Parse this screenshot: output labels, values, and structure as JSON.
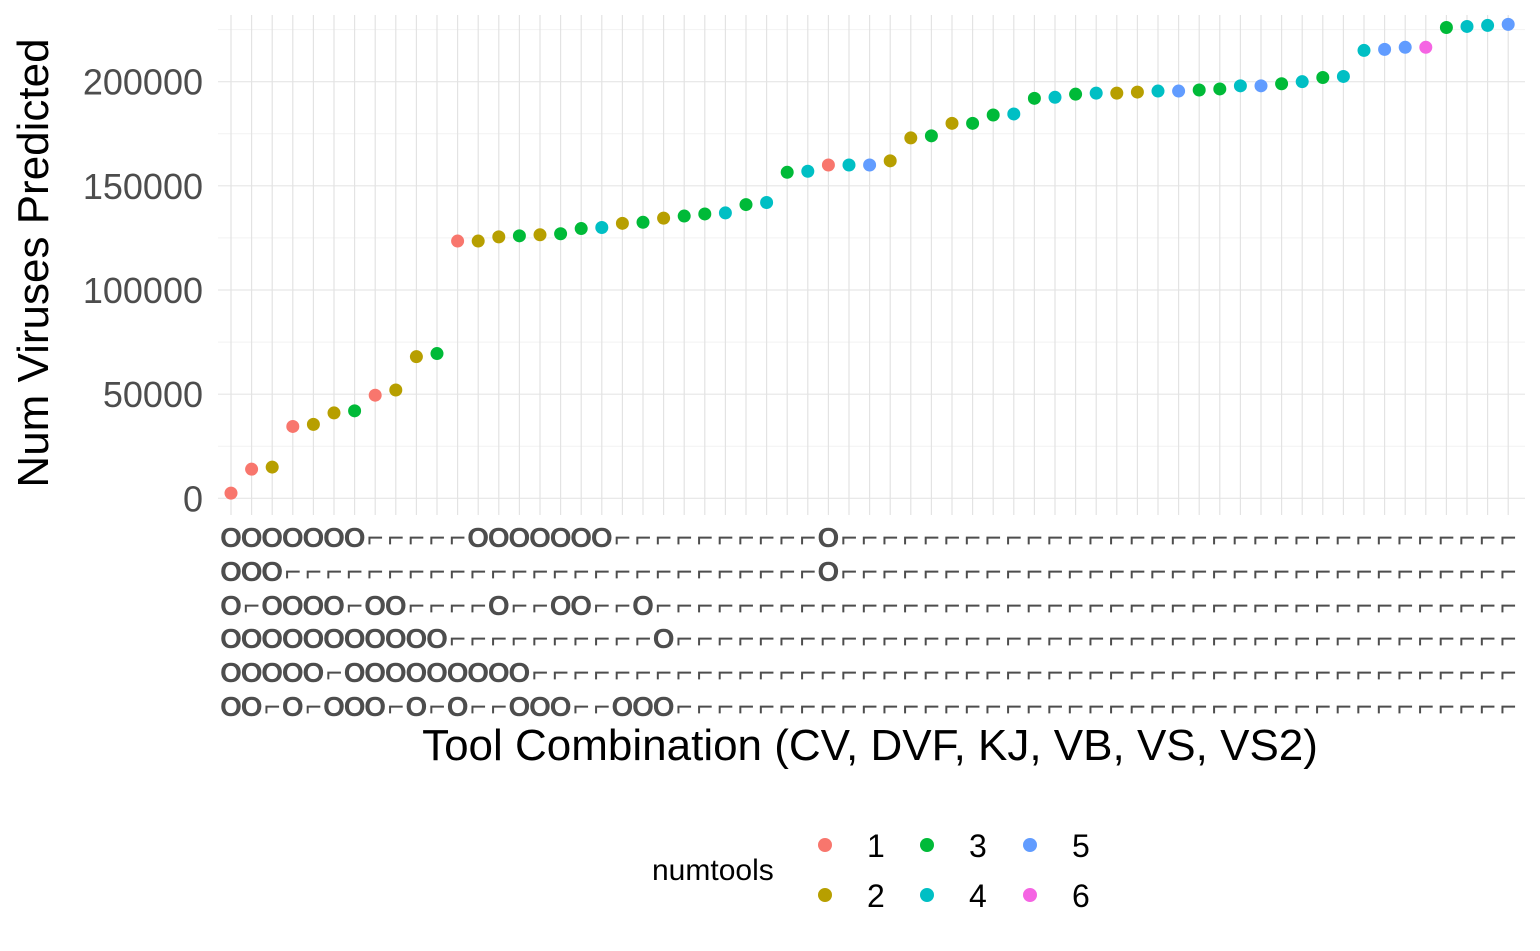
{
  "chart_data": {
    "type": "scatter",
    "xlabel": "Tool Combination (CV, DVF, KJ, VB, VS, VS2)",
    "ylabel": "Num Viruses Predicted",
    "ylim": [
      -8000,
      232000
    ],
    "yticks": [
      0,
      50000,
      100000,
      150000,
      200000
    ],
    "grid": true,
    "legend": {
      "title": "numtools",
      "position": "bottom",
      "entries": [
        "1",
        "2",
        "3",
        "4",
        "5",
        "6"
      ]
    },
    "colors": {
      "1": "#F8766D",
      "2": "#B79F00",
      "3": "#00BA38",
      "4": "#00BFC4",
      "5": "#619CFF",
      "6": "#F564E3"
    },
    "tick_symbols": {
      "absent": "⌐",
      "present": "O"
    },
    "tool_order": [
      "CV",
      "DVF",
      "KJ",
      "VB",
      "VS",
      "VS2"
    ],
    "points": [
      {
        "combo": "111111",
        "y": 2500,
        "numtools": 1
      },
      {
        "combo": "110111",
        "y": 14000,
        "numtools": 1
      },
      {
        "combo": "111110",
        "y": 15000,
        "numtools": 2
      },
      {
        "combo": "101111",
        "y": 34500,
        "numtools": 1
      },
      {
        "combo": "101110",
        "y": 35500,
        "numtools": 2
      },
      {
        "combo": "101101",
        "y": 41000,
        "numtools": 2
      },
      {
        "combo": "100111",
        "y": 42000,
        "numtools": 3
      },
      {
        "combo": "001111",
        "y": 49500,
        "numtools": 1
      },
      {
        "combo": "001110",
        "y": 52000,
        "numtools": 2
      },
      {
        "combo": "000111",
        "y": 68000,
        "numtools": 2
      },
      {
        "combo": "000110",
        "y": 69500,
        "numtools": 3
      },
      {
        "combo": "000011",
        "y": 123500,
        "numtools": 1
      },
      {
        "combo": "100010",
        "y": 123500,
        "numtools": 2
      },
      {
        "combo": "101010",
        "y": 125500,
        "numtools": 2
      },
      {
        "combo": "100011",
        "y": 126000,
        "numtools": 3
      },
      {
        "combo": "100001",
        "y": 126500,
        "numtools": 2
      },
      {
        "combo": "101001",
        "y": 127000,
        "numtools": 3
      },
      {
        "combo": "101000",
        "y": 129500,
        "numtools": 3
      },
      {
        "combo": "100000",
        "y": 130000,
        "numtools": 4
      },
      {
        "combo": "000001",
        "y": 132000,
        "numtools": 2
      },
      {
        "combo": "001001",
        "y": 132500,
        "numtools": 3
      },
      {
        "combo": "000101",
        "y": 134500,
        "numtools": 2
      },
      {
        "combo": "000000",
        "y": 135500,
        "numtools": 3
      },
      {
        "combo": "000000",
        "y": 136500,
        "numtools": 3
      },
      {
        "combo": "000000",
        "y": 137000,
        "numtools": 4
      },
      {
        "combo": "000000",
        "y": 141000,
        "numtools": 3
      },
      {
        "combo": "000000",
        "y": 142000,
        "numtools": 4
      },
      {
        "combo": "000000",
        "y": 156500,
        "numtools": 3
      },
      {
        "combo": "000000",
        "y": 157000,
        "numtools": 4
      },
      {
        "combo": "110000",
        "y": 160000,
        "numtools": 1
      },
      {
        "combo": "000000",
        "y": 160000,
        "numtools": 4
      },
      {
        "combo": "000000",
        "y": 160000,
        "numtools": 5
      },
      {
        "combo": "000000",
        "y": 162000,
        "numtools": 2
      },
      {
        "combo": "000000",
        "y": 173000,
        "numtools": 2
      },
      {
        "combo": "000000",
        "y": 174000,
        "numtools": 3
      },
      {
        "combo": "000000",
        "y": 180000,
        "numtools": 2
      },
      {
        "combo": "000000",
        "y": 180000,
        "numtools": 3
      },
      {
        "combo": "000000",
        "y": 184000,
        "numtools": 3
      },
      {
        "combo": "000000",
        "y": 184500,
        "numtools": 4
      },
      {
        "combo": "000000",
        "y": 192000,
        "numtools": 3
      },
      {
        "combo": "000000",
        "y": 192500,
        "numtools": 4
      },
      {
        "combo": "000000",
        "y": 194000,
        "numtools": 3
      },
      {
        "combo": "000000",
        "y": 194500,
        "numtools": 4
      },
      {
        "combo": "000000",
        "y": 194500,
        "numtools": 2
      },
      {
        "combo": "000000",
        "y": 195000,
        "numtools": 2
      },
      {
        "combo": "000000",
        "y": 195500,
        "numtools": 4
      },
      {
        "combo": "000000",
        "y": 195500,
        "numtools": 5
      },
      {
        "combo": "000000",
        "y": 196000,
        "numtools": 3
      },
      {
        "combo": "000000",
        "y": 196500,
        "numtools": 3
      },
      {
        "combo": "000000",
        "y": 198000,
        "numtools": 4
      },
      {
        "combo": "000000",
        "y": 198000,
        "numtools": 5
      },
      {
        "combo": "000000",
        "y": 199000,
        "numtools": 3
      },
      {
        "combo": "000000",
        "y": 200000,
        "numtools": 4
      },
      {
        "combo": "000000",
        "y": 202000,
        "numtools": 3
      },
      {
        "combo": "000000",
        "y": 202500,
        "numtools": 4
      },
      {
        "combo": "000000",
        "y": 215000,
        "numtools": 4
      },
      {
        "combo": "000000",
        "y": 215500,
        "numtools": 5
      },
      {
        "combo": "000000",
        "y": 216500,
        "numtools": 5
      },
      {
        "combo": "000000",
        "y": 216500,
        "numtools": 6
      },
      {
        "combo": "000000",
        "y": 226000,
        "numtools": 3
      },
      {
        "combo": "000000",
        "y": 226500,
        "numtools": 4
      },
      {
        "combo": "000000",
        "y": 227000,
        "numtools": 4
      },
      {
        "combo": "000000",
        "y": 227500,
        "numtools": 5
      }
    ]
  }
}
